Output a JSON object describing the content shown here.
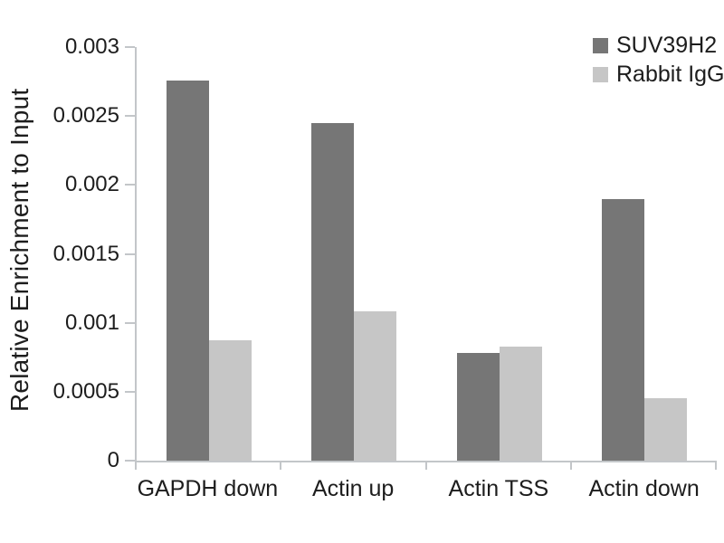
{
  "chart_data": {
    "type": "bar",
    "title": "",
    "xlabel": "",
    "ylabel": "Relative Enrichment to Input",
    "categories": [
      "GAPDH down",
      "Actin up",
      "Actin TSS",
      "Actin down"
    ],
    "series": [
      {
        "name": "SUV39H2",
        "color": "#767676",
        "values": [
          0.00276,
          0.00245,
          0.00078,
          0.0019
        ]
      },
      {
        "name": "Rabbit IgG",
        "color": "#c6c6c6",
        "values": [
          0.00087,
          0.00108,
          0.00083,
          0.00045
        ]
      }
    ],
    "ylim": [
      0,
      0.003
    ],
    "ytick_labels": [
      "0",
      "0.0005",
      "0.001",
      "0.0015",
      "0.002",
      "0.0025",
      "0.003"
    ],
    "grid": false,
    "legend_position": "top-right"
  },
  "colors": {
    "axis": "#c3c6c9",
    "text": "#1d1d1d",
    "background": "#ffffff"
  }
}
